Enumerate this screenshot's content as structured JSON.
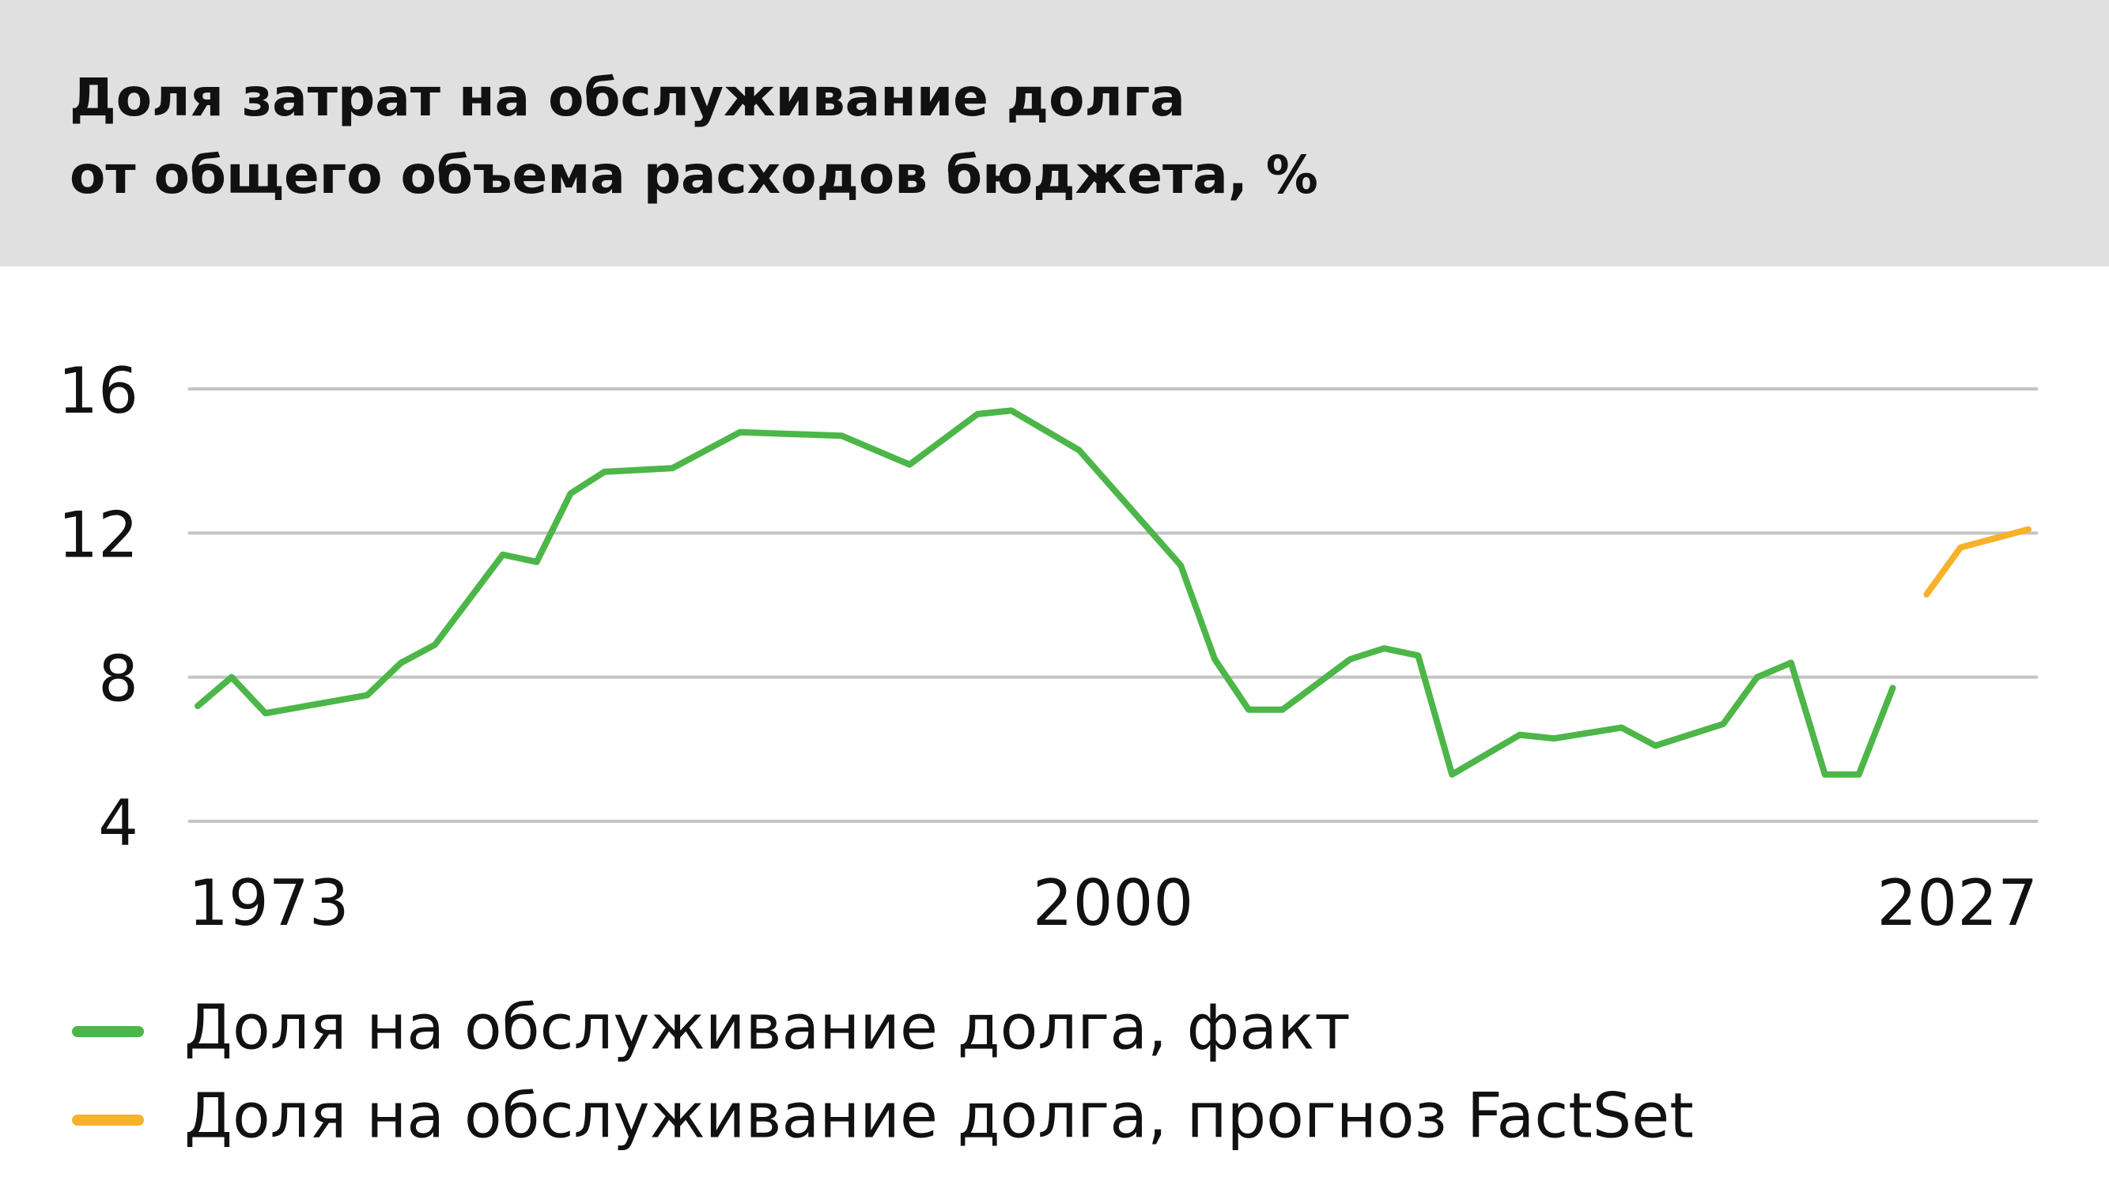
{
  "chart_data": {
    "type": "line",
    "title": [
      "Доля затрат на обслуживание долга",
      "от общего объема расходов бюджета, %"
    ],
    "xlim": [
      1973,
      2027
    ],
    "xticks": [
      1973,
      2000,
      2027
    ],
    "ylim": [
      4,
      16
    ],
    "yticks": [
      4,
      8,
      12,
      16
    ],
    "grid": true,
    "series": [
      {
        "name": "Доля на обслуживание долга, факт",
        "color": "#4cb648",
        "x": [
          1973,
          1974,
          1975,
          1978,
          1979,
          1980,
          1982,
          1983,
          1984,
          1985,
          1987,
          1989,
          1992,
          1994,
          1996,
          1997,
          1999,
          2002,
          2003,
          2004,
          2005,
          2007,
          2008,
          2009,
          2010,
          2012,
          2013,
          2015,
          2016,
          2018,
          2019,
          2020,
          2021,
          2022,
          2023
        ],
        "values": [
          7.2,
          8.0,
          7.0,
          7.5,
          8.4,
          8.9,
          11.4,
          11.2,
          13.1,
          13.7,
          13.8,
          14.8,
          14.7,
          13.9,
          15.3,
          15.4,
          14.3,
          11.1,
          8.5,
          7.1,
          7.1,
          8.5,
          8.8,
          8.6,
          5.3,
          6.4,
          6.3,
          6.6,
          6.1,
          6.7,
          8.0,
          8.4,
          5.3,
          5.3,
          7.7
        ]
      },
      {
        "name": "Доля на обслуживание долга, прогноз FactSet",
        "color": "#f7b12a",
        "x": [
          2024,
          2025,
          2027
        ],
        "values": [
          10.3,
          11.6,
          12.1
        ]
      }
    ]
  }
}
